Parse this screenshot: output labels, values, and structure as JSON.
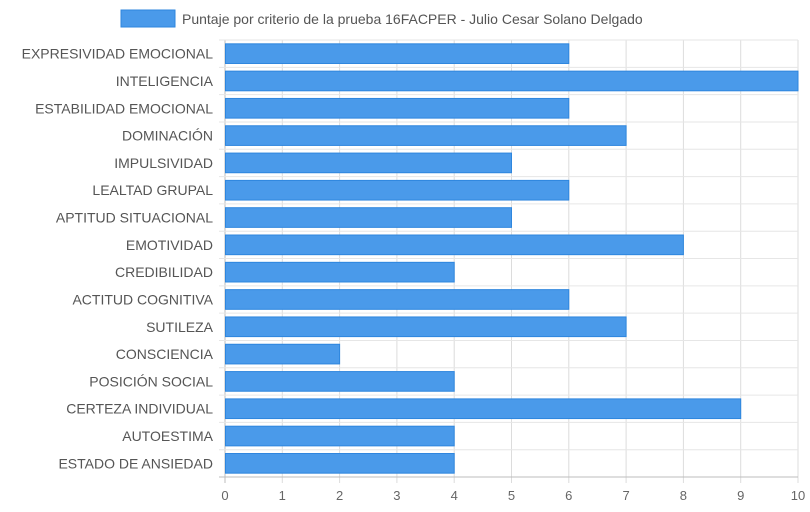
{
  "chart_data": {
    "type": "bar",
    "orientation": "horizontal",
    "legend_position": "top",
    "legend_label": "Puntaje por criterio de la prueba 16FACPER - Julio Cesar Solano Delgado",
    "categories": [
      "EXPRESIVIDAD EMOCIONAL",
      "INTELIGENCIA",
      "ESTABILIDAD EMOCIONAL",
      "DOMINACIÓN",
      "IMPULSIVIDAD",
      "LEALTAD GRUPAL",
      "APTITUD SITUACIONAL",
      "EMOTIVIDAD",
      "CREDIBILIDAD",
      "ACTITUD COGNITIVA",
      "SUTILEZA",
      "CONSCIENCIA",
      "POSICIÓN SOCIAL",
      "CERTEZA INDIVIDUAL",
      "AUTOESTIMA",
      "ESTADO DE ANSIEDAD"
    ],
    "series": [
      {
        "name": "Puntaje por criterio de la prueba 16FACPER - Julio Cesar Solano Delgado",
        "values": [
          6,
          10,
          6,
          7,
          5,
          6,
          5,
          8,
          4,
          6,
          7,
          2,
          4,
          9,
          4,
          4
        ]
      }
    ],
    "xlim": [
      0,
      10
    ],
    "x_ticks": [
      "0",
      "1",
      "2",
      "3",
      "4",
      "5",
      "6",
      "7",
      "8",
      "9",
      "10"
    ],
    "grid": true,
    "bar_color": "#4a9aea",
    "bar_border_color": "#2e86de",
    "title": "",
    "xlabel": "",
    "ylabel": ""
  }
}
